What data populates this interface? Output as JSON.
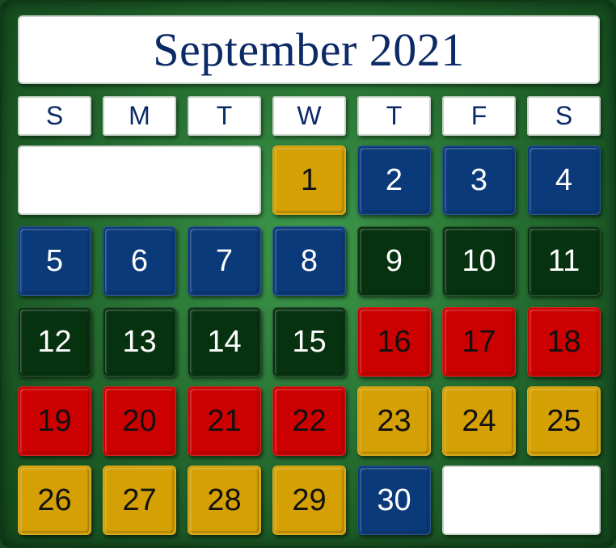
{
  "calendar": {
    "title": "September 2021",
    "weekdays": [
      "S",
      "M",
      "T",
      "W",
      "T",
      "F",
      "S"
    ],
    "colors": {
      "gold": "#d4a004",
      "blue": "#0b3a7a",
      "dark_green": "#07320f",
      "red": "#cc0000"
    },
    "days": [
      {
        "day": "1",
        "color": "gold"
      },
      {
        "day": "2",
        "color": "blue"
      },
      {
        "day": "3",
        "color": "blue"
      },
      {
        "day": "4",
        "color": "blue"
      },
      {
        "day": "5",
        "color": "blue"
      },
      {
        "day": "6",
        "color": "blue"
      },
      {
        "day": "7",
        "color": "blue"
      },
      {
        "day": "8",
        "color": "blue"
      },
      {
        "day": "9",
        "color": "dark_green"
      },
      {
        "day": "10",
        "color": "dark_green"
      },
      {
        "day": "11",
        "color": "dark_green"
      },
      {
        "day": "12",
        "color": "dark_green"
      },
      {
        "day": "13",
        "color": "dark_green"
      },
      {
        "day": "14",
        "color": "dark_green"
      },
      {
        "day": "15",
        "color": "dark_green"
      },
      {
        "day": "16",
        "color": "red"
      },
      {
        "day": "17",
        "color": "red"
      },
      {
        "day": "18",
        "color": "red"
      },
      {
        "day": "19",
        "color": "red"
      },
      {
        "day": "20",
        "color": "red"
      },
      {
        "day": "21",
        "color": "red"
      },
      {
        "day": "22",
        "color": "red"
      },
      {
        "day": "23",
        "color": "gold"
      },
      {
        "day": "24",
        "color": "gold"
      },
      {
        "day": "25",
        "color": "gold"
      },
      {
        "day": "26",
        "color": "gold"
      },
      {
        "day": "27",
        "color": "gold"
      },
      {
        "day": "28",
        "color": "gold"
      },
      {
        "day": "29",
        "color": "gold"
      },
      {
        "day": "30",
        "color": "blue"
      }
    ]
  }
}
